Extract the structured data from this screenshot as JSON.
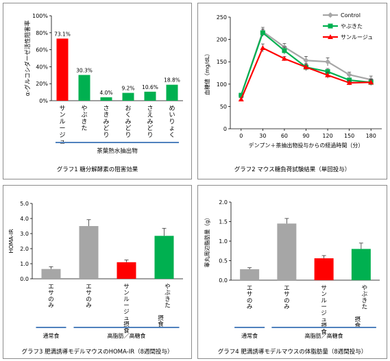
{
  "charts": [
    {
      "caption": "グラフ1 糖分解酵素の阻害効果",
      "chart_data": {
        "type": "bar",
        "ylabel": "α-グルコシダーゼ活性阻害率",
        "ylim": [
          0,
          100
        ],
        "yticks": [
          "0%",
          "20%",
          "40%",
          "60%",
          "80%",
          "100%"
        ],
        "yticks_values": [
          0,
          20,
          40,
          60,
          80,
          100
        ],
        "categories": [
          "サンルージュ",
          "やぶきた",
          "さきみどり",
          "おくみどり",
          "さえみどり",
          "めいりょく"
        ],
        "values": [
          73.1,
          30.3,
          4.0,
          9.2,
          10.6,
          18.8
        ],
        "value_labels": [
          "73.1%",
          "30.3%",
          "4.0%",
          "9.2%",
          "10.6%",
          "18.8%"
        ],
        "colors": [
          "#ff0000",
          "#00b050",
          "#00b050",
          "#00b050",
          "#00b050",
          "#00b050"
        ],
        "group_label": "茶葉熱水抽出物",
        "group_line_color": "#4f81bd"
      }
    },
    {
      "caption": "グラフ2 マウス糖負荷試験結果（単回投与）",
      "chart_data": {
        "type": "line",
        "ylabel": "血糖値（mg/dL）",
        "xlabel": "デンプン＋茶抽出物投与からの経過時間（分）",
        "ylim": [
          0,
          250
        ],
        "yticks": [
          "0",
          "50",
          "100",
          "150",
          "200",
          "250"
        ],
        "yticks_values": [
          0,
          50,
          100,
          150,
          200,
          250
        ],
        "xlim": [
          -15,
          195
        ],
        "x": [
          0,
          30,
          60,
          90,
          120,
          150,
          180
        ],
        "xticks": [
          "0",
          "30",
          "60",
          "90",
          "120",
          "150",
          "180"
        ],
        "legend_position": "top-right",
        "series": [
          {
            "name": "Control",
            "color": "#a6a6a6",
            "marker": "diamond",
            "values": [
              75,
              218,
              183,
              153,
              150,
              121,
              110
            ],
            "errors": [
              5,
              9,
              8,
              9,
              9,
              6,
              8
            ]
          },
          {
            "name": "やぶきた",
            "color": "#00b050",
            "marker": "square",
            "values": [
              75,
              215,
              175,
              138,
              128,
              109,
              104
            ],
            "errors": [
              4,
              8,
              8,
              6,
              7,
              5,
              6
            ]
          },
          {
            "name": "サンルージュ",
            "color": "#ff0000",
            "marker": "triangle",
            "values": [
              66,
              181,
              157,
              138,
              120,
              103,
              104
            ],
            "errors": [
              4,
              9,
              5,
              8,
              7,
              5,
              7
            ]
          }
        ]
      }
    },
    {
      "caption": "グラフ3 肥満誘導モデルマウスのHOMA-IR（8週間投与）",
      "chart_data": {
        "type": "bar",
        "ylabel": "HOMA-IR",
        "ylim": [
          0,
          5
        ],
        "yticks": [
          "0.0",
          "1.0",
          "2.0",
          "3.0",
          "4.0",
          "5.0"
        ],
        "yticks_values": [
          0,
          1,
          2,
          3,
          4,
          5
        ],
        "categories": [
          "エサのみ",
          "エサのみ",
          "サンルージュ摂食",
          "やぶきた　摂食"
        ],
        "values": [
          0.65,
          3.5,
          1.1,
          2.85
        ],
        "errors": [
          0.15,
          0.42,
          0.15,
          0.5
        ],
        "colors": [
          "#a6a6a6",
          "#a6a6a6",
          "#ff0000",
          "#00b050"
        ],
        "groups": [
          {
            "label": "通常食",
            "from": 0,
            "to": 0
          },
          {
            "label": "高脂肪／高糖食",
            "from": 1,
            "to": 3
          }
        ],
        "group_line_color": "#4f81bd"
      }
    },
    {
      "caption": "グラフ4 肥満誘導モデルマウスの体脂肪量（8週間投与）",
      "chart_data": {
        "type": "bar",
        "ylabel": "睾丸周辺脂肪量（g）",
        "ylim": [
          0,
          2
        ],
        "yticks": [
          "0.0",
          "0.5",
          "1.0",
          "1.5",
          "2.0"
        ],
        "yticks_values": [
          0,
          0.5,
          1.0,
          1.5,
          2.0
        ],
        "categories": [
          "エサのみ",
          "エサのみ",
          "サンルージュ摂食",
          "やぶきた　摂食"
        ],
        "values": [
          0.28,
          1.45,
          0.56,
          0.8
        ],
        "errors": [
          0.04,
          0.13,
          0.07,
          0.15
        ],
        "colors": [
          "#a6a6a6",
          "#a6a6a6",
          "#ff0000",
          "#00b050"
        ],
        "groups": [
          {
            "label": "通常食",
            "from": 0,
            "to": 0
          },
          {
            "label": "高脂肪／高糖食",
            "from": 1,
            "to": 3
          }
        ],
        "group_line_color": "#4f81bd"
      }
    }
  ]
}
